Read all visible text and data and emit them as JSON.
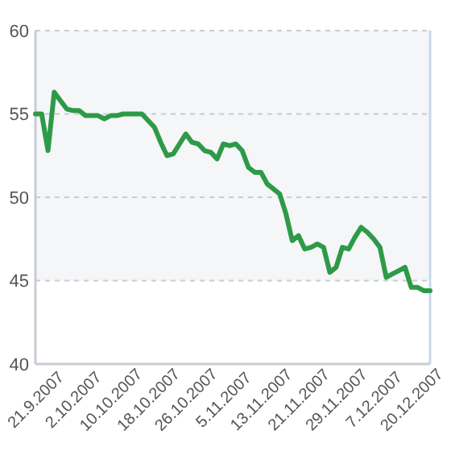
{
  "chart_data": {
    "type": "line",
    "categories": [
      "21.9.2007",
      null,
      null,
      null,
      null,
      null,
      "2.10.2007",
      null,
      null,
      null,
      null,
      null,
      "10.10.2007",
      null,
      null,
      null,
      null,
      null,
      "18.10.2007",
      null,
      null,
      null,
      null,
      null,
      "26.10.2007",
      null,
      null,
      null,
      null,
      null,
      "5.11.2007",
      null,
      null,
      null,
      null,
      null,
      "13.11.2007",
      null,
      null,
      null,
      null,
      null,
      "21.11.2007",
      null,
      null,
      null,
      null,
      null,
      "29.11.2007",
      null,
      null,
      null,
      null,
      null,
      "7.12.2007",
      null,
      null,
      null,
      null,
      null,
      "20.12.2007",
      null,
      null,
      null
    ],
    "series": [
      {
        "color": "#2e9a47",
        "values": [
          55,
          55,
          52.8,
          56.3,
          55.8,
          55.3,
          55.2,
          55.2,
          54.9,
          54.9,
          54.9,
          54.7,
          54.9,
          54.9,
          55,
          55,
          55,
          55,
          54.6,
          54.2,
          53.3,
          52.5,
          52.6,
          53.2,
          53.8,
          53.3,
          53.2,
          52.8,
          52.7,
          52.3,
          53.2,
          53.1,
          53.2,
          52.8,
          51.8,
          51.5,
          51.5,
          50.8,
          50.5,
          50.2,
          49,
          47.4,
          47.7,
          46.9,
          47,
          47.2,
          47,
          45.5,
          45.8,
          47,
          46.9,
          47.6,
          48.2,
          47.9,
          47.5,
          47,
          45.2,
          45.4,
          45.6,
          45.8,
          44.6,
          44.6,
          44.4,
          44.4
        ]
      }
    ],
    "ylim": [
      40,
      60
    ],
    "yticks": [
      40,
      45,
      50,
      55,
      60
    ],
    "grid": "y",
    "marker": "none",
    "line_style": "solid",
    "bands": [
      {
        "axis": "y",
        "from": 45,
        "to": 60,
        "color": "#f4f6f8"
      }
    ]
  }
}
